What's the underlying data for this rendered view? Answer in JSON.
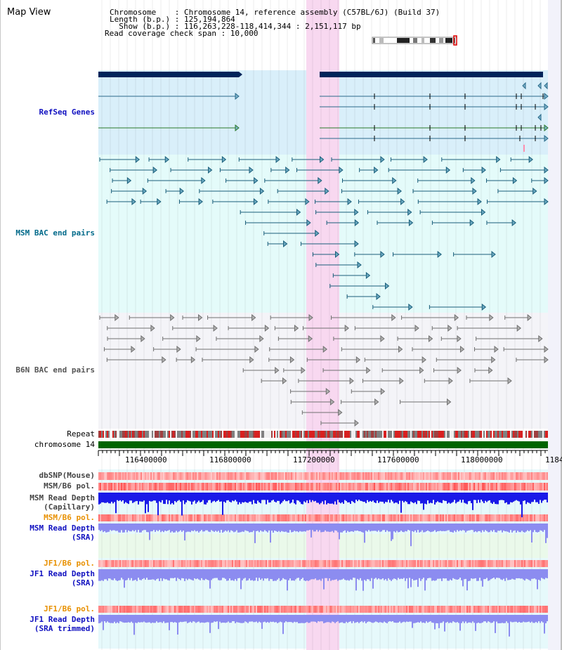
{
  "header": {
    "title": "Map View",
    "lines": [
      "Chromosome    : Chromosome 14, reference assembly (C57BL/6J) (Build 37)",
      "Length (b.p.) : 125,194,864",
      "  Show (b.p.) : 116,263,228-118,414,344 : 2,151,117 bp",
      "Read coverage check span : 10,000"
    ]
  },
  "tracks": {
    "refseq": "RefSeq Genes",
    "msm_bac": "MSM BAC end pairs",
    "b6n_bac": "B6N BAC end pairs",
    "repeat": "Repeat",
    "chromosome": "chromosome 14",
    "dbsnp": "dbSNP(Mouse)",
    "msm_pol": "MSM/B6 pol.",
    "msm_depth_cap_1": "MSM Read Depth",
    "msm_depth_cap_2": "(Capillary)",
    "msm_pol_2": "MSM/B6 pol.",
    "msm_depth_sra_1": "MSM Read Depth",
    "msm_depth_sra_2": "(SRA)",
    "jf1_pol": "JF1/B6 pol.",
    "jf1_depth_1": "JF1 Read Depth",
    "jf1_depth_2": "(SRA)",
    "jf1_pol_2": "JF1/B6 pol.",
    "jf1_trim_1": "JF1 Read Depth",
    "jf1_trim_2": "(SRA trimmed)"
  },
  "axis": {
    "ticks": [
      "116400000",
      "116800000",
      "117200000",
      "117600000",
      "118000000",
      "1184"
    ]
  },
  "colors": {
    "highlight": "#f8d8f0",
    "gene_bar": "#00245a",
    "gene_line": "#2a6a8a",
    "gene_line_green": "#2a7a2a",
    "msm_line": "#1a5e7a",
    "b6n_line": "#707070",
    "chromosome_bar": "#006400",
    "depth_blue": "#1a1ae8",
    "depth_light": "#8c8cf0",
    "snp_red": "#f26060"
  }
}
